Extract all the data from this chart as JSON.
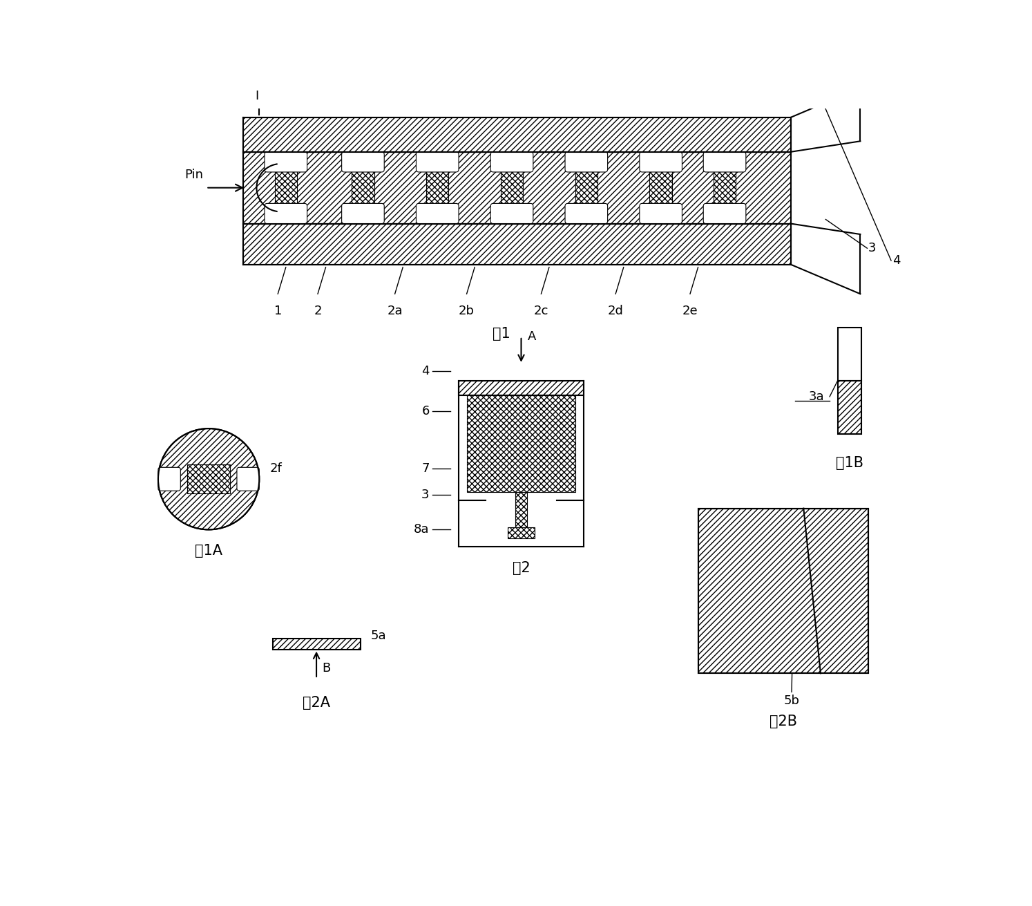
{
  "bg_color": "#ffffff",
  "fig1_title": "图1",
  "fig1a_title": "图1A",
  "fig1b_title": "图1B",
  "fig2_title": "图2",
  "fig2a_title": "图2A",
  "fig2b_title": "图2B",
  "label_I": "I",
  "label_Pin": "Pin",
  "label_1": "1",
  "label_2": "2",
  "label_2a": "2a",
  "label_2b": "2b",
  "label_2c": "2c",
  "label_2d": "2d",
  "label_2e": "2e",
  "label_2f": "2f",
  "label_3": "3",
  "label_3a": "3a",
  "label_4": "4",
  "label_5a": "5a",
  "label_5b": "5b",
  "label_6": "6",
  "label_7": "7",
  "label_8a": "8a",
  "label_A": "A",
  "label_B": "B",
  "font_size_label": 13,
  "font_size_title": 15,
  "lw_main": 1.5,
  "lw_thin": 1.0
}
